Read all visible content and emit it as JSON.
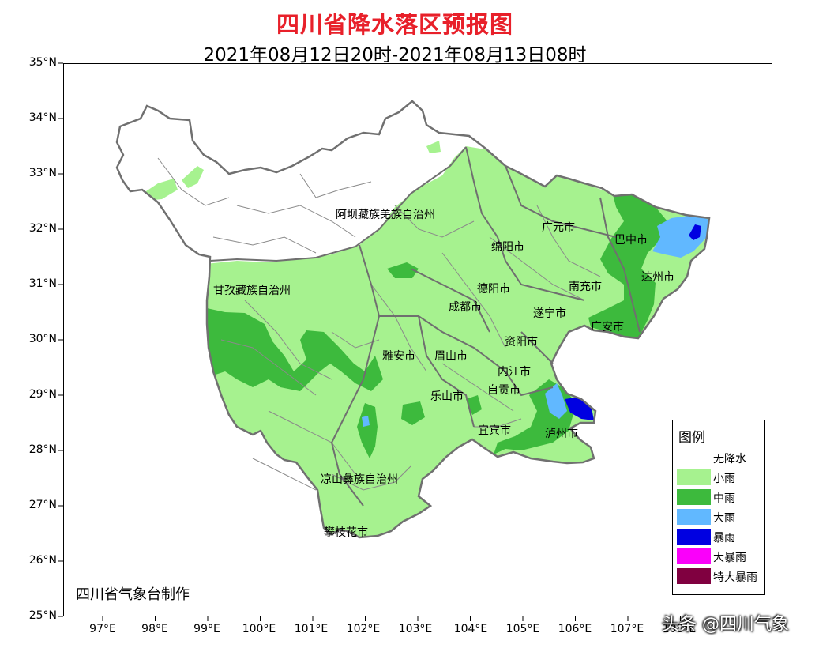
{
  "title": "四川省降水落区预报图",
  "subtitle": "2021年08月12日20时-2021年08月13日08时",
  "lat_labels": [
    "35°N",
    "34°N",
    "33°N",
    "32°N",
    "31°N",
    "30°N",
    "29°N",
    "28°N",
    "27°N",
    "26°N",
    "25°N"
  ],
  "lon_labels": [
    "97°E",
    "98°E",
    "99°E",
    "100°E",
    "101°E",
    "102°E",
    "103°E",
    "104°E",
    "105°E",
    "106°E",
    "107°E",
    "108°E"
  ],
  "regions": {
    "aba": "阿坝藏族羌族自治州",
    "ganzi": "甘孜藏族自治州",
    "liangshan": "凉山彝族自治州",
    "guangyuan": "广元市",
    "bazhong": "巴中市",
    "mianyang": "绵阳市",
    "dazhou": "达州市",
    "deyang": "德阳市",
    "nanchong": "南充市",
    "chengdu": "成都市",
    "suining": "遂宁市",
    "guangan": "广安市",
    "ziyang": "资阳市",
    "yaan": "雅安市",
    "meishan": "眉山市",
    "neijiang": "内江市",
    "zigong": "自贡市",
    "leshan": "乐山市",
    "yibin": "宜宾市",
    "luzhou": "泸州市",
    "panzhihua": "攀枝花市"
  },
  "maker": "四川省气象台制作",
  "legend": {
    "title": "图例",
    "items": [
      {
        "label": "无降水",
        "color": "#ffffff"
      },
      {
        "label": "小雨",
        "color": "#a6f28f"
      },
      {
        "label": "中雨",
        "color": "#3dba3d"
      },
      {
        "label": "大雨",
        "color": "#61b8ff"
      },
      {
        "label": "暴雨",
        "color": "#0000e1"
      },
      {
        "label": "大暴雨",
        "color": "#fa00fa"
      },
      {
        "label": "特大暴雨",
        "color": "#800040"
      }
    ]
  },
  "watermark": "头条 @四川气象"
}
